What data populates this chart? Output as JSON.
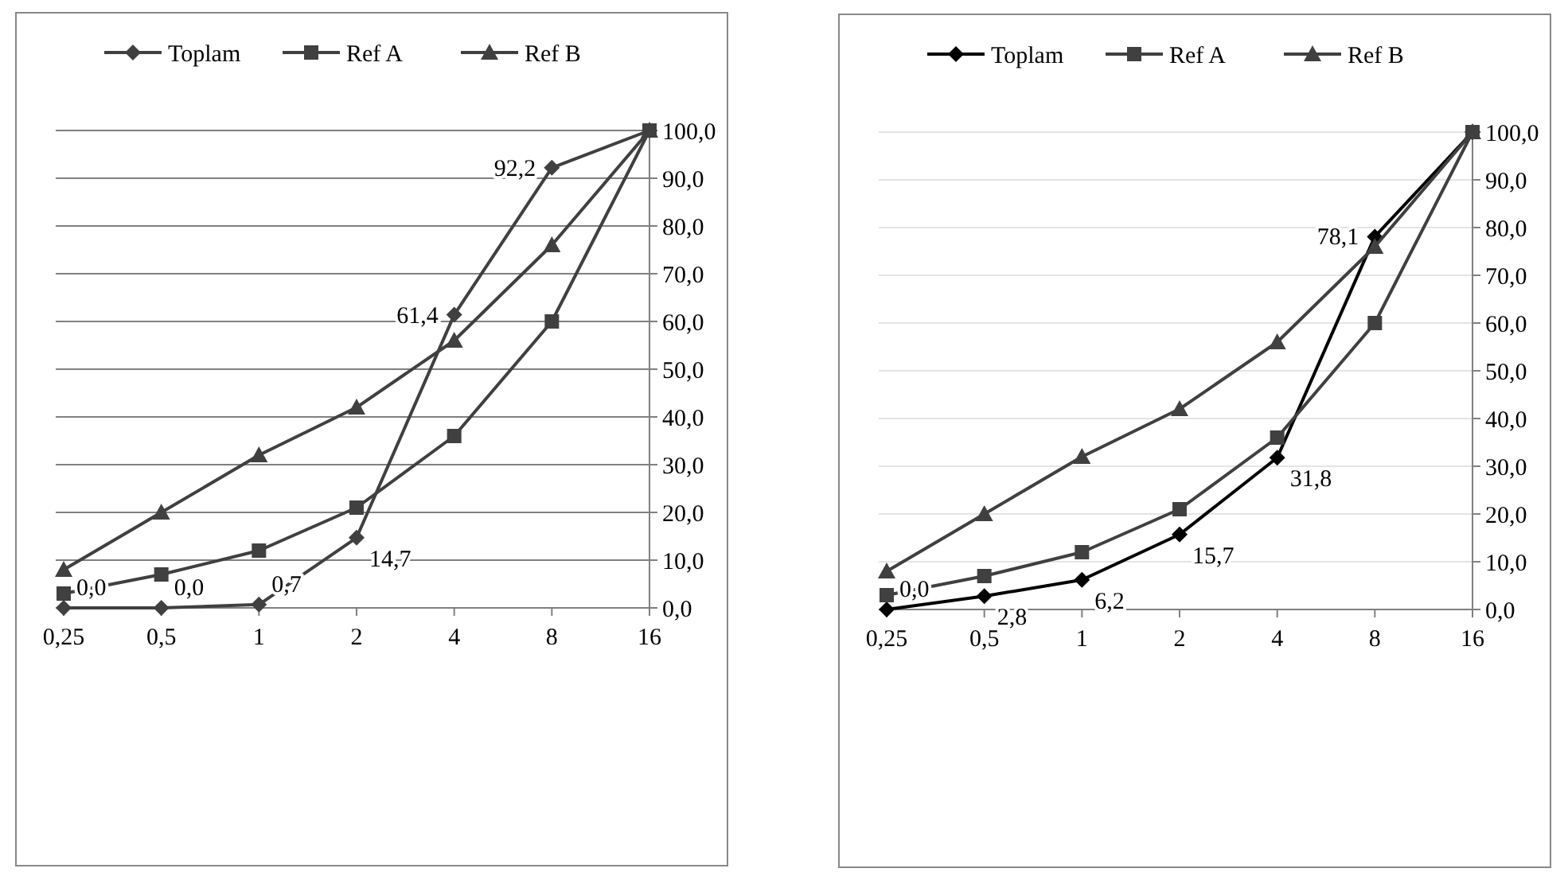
{
  "chart_data": [
    {
      "type": "line",
      "categories": [
        "0,25",
        "0,5",
        "1",
        "2",
        "4",
        "8",
        "16"
      ],
      "ylim": [
        0,
        100
      ],
      "yticks": [
        {
          "value": 0,
          "label": "0,0"
        },
        {
          "value": 10,
          "label": "10,0"
        },
        {
          "value": 20,
          "label": "20,0"
        },
        {
          "value": 30,
          "label": "30,0"
        },
        {
          "value": 40,
          "label": "40,0"
        },
        {
          "value": 50,
          "label": "50,0"
        },
        {
          "value": 60,
          "label": "60,0"
        },
        {
          "value": 70,
          "label": "70,0"
        },
        {
          "value": 80,
          "label": "80,0"
        },
        {
          "value": 90,
          "label": "90,0"
        },
        {
          "value": 100,
          "label": "100,0"
        }
      ],
      "grid": "y",
      "legend": "top",
      "series": [
        {
          "name": "Toplam",
          "color": "#404040",
          "marker": "diamond",
          "values": [
            0,
            0,
            0.7,
            14.7,
            61.4,
            92.2,
            100
          ],
          "value_labels": [
            "0,0",
            "0,0",
            "0,7",
            "14,7",
            "61,4",
            "92,2",
            null
          ]
        },
        {
          "name": "Ref A",
          "color": "#404040",
          "marker": "square",
          "values": [
            3,
            7,
            12,
            21,
            36,
            60,
            100
          ]
        },
        {
          "name": "Ref B",
          "color": "#404040",
          "marker": "triangle",
          "values": [
            8,
            20,
            32,
            42,
            56,
            76,
            100
          ]
        }
      ]
    },
    {
      "type": "line",
      "categories": [
        "0,25",
        "0,5",
        "1",
        "2",
        "4",
        "8",
        "16"
      ],
      "ylim": [
        0,
        100
      ],
      "yticks": [
        {
          "value": 0,
          "label": "0,0"
        },
        {
          "value": 10,
          "label": "10,0"
        },
        {
          "value": 20,
          "label": "20,0"
        },
        {
          "value": 30,
          "label": "30,0"
        },
        {
          "value": 40,
          "label": "40,0"
        },
        {
          "value": 50,
          "label": "50,0"
        },
        {
          "value": 60,
          "label": "60,0"
        },
        {
          "value": 70,
          "label": "70,0"
        },
        {
          "value": 80,
          "label": "80,0"
        },
        {
          "value": 90,
          "label": "90,0"
        },
        {
          "value": 100,
          "label": "100,0"
        }
      ],
      "grid": "y",
      "legend": "top",
      "series": [
        {
          "name": "Toplam",
          "color": "#000000",
          "marker": "diamond",
          "values": [
            0,
            2.8,
            6.2,
            15.7,
            31.8,
            78.1,
            100
          ],
          "value_labels": [
            "0,0",
            "2,8",
            "6,2",
            "15,7",
            "31,8",
            "78,1",
            null
          ]
        },
        {
          "name": "Ref A",
          "color": "#404040",
          "marker": "square",
          "values": [
            3,
            7,
            12,
            21,
            36,
            60,
            100
          ]
        },
        {
          "name": "Ref B",
          "color": "#404040",
          "marker": "triangle",
          "values": [
            8,
            20,
            32,
            42,
            56,
            76,
            100
          ]
        }
      ]
    }
  ]
}
